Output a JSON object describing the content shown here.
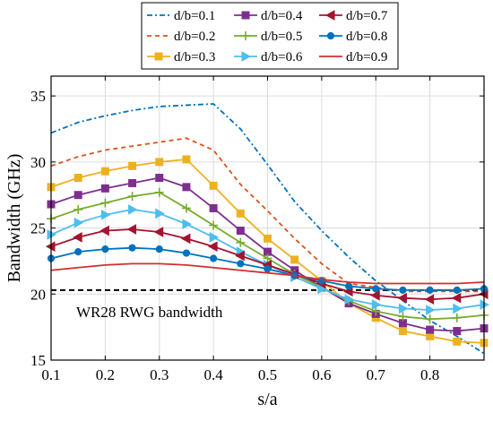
{
  "chart_data": {
    "type": "line",
    "xlabel": "s/a",
    "ylabel": "Bandwidth (GHz)",
    "xlim": [
      0.1,
      0.9
    ],
    "ylim": [
      15,
      36.5
    ],
    "xticks": [
      0.1,
      0.2,
      0.3,
      0.4,
      0.5,
      0.6,
      0.7,
      0.8
    ],
    "yticks": [
      15,
      20,
      25,
      30,
      35
    ],
    "grid": true,
    "legend_position": "top",
    "reference_line": {
      "label": "WR28 RWG bandwidth",
      "y": 20.3,
      "color": "#000000"
    },
    "series": [
      {
        "name": "d/b=0.1",
        "color": "#0072BD",
        "dash": "6,3,2,3",
        "marker": "none",
        "x": [
          0.1,
          0.15,
          0.2,
          0.25,
          0.3,
          0.35,
          0.4,
          0.45,
          0.5,
          0.55,
          0.6,
          0.65,
          0.7,
          0.75,
          0.8,
          0.85,
          0.9
        ],
        "y": [
          32.2,
          33.0,
          33.5,
          33.9,
          34.2,
          34.3,
          34.4,
          32.5,
          29.8,
          27.0,
          24.8,
          22.8,
          21.0,
          19.5,
          18.0,
          16.8,
          15.5
        ]
      },
      {
        "name": "d/b=0.2",
        "color": "#D95319",
        "dash": "5,4",
        "marker": "none",
        "x": [
          0.1,
          0.15,
          0.2,
          0.25,
          0.3,
          0.35,
          0.4,
          0.45,
          0.5,
          0.55,
          0.6,
          0.65,
          0.7,
          0.75,
          0.8,
          0.85,
          0.9
        ],
        "y": [
          29.7,
          30.4,
          30.9,
          31.2,
          31.5,
          31.8,
          30.9,
          28.3,
          26.3,
          24.2,
          22.3,
          20.8,
          20.5,
          20.2,
          20.2,
          20.2,
          20.2
        ]
      },
      {
        "name": "d/b=0.3",
        "color": "#EDB120",
        "dash": "",
        "marker": "square",
        "x": [
          0.1,
          0.15,
          0.2,
          0.25,
          0.3,
          0.35,
          0.4,
          0.45,
          0.5,
          0.55,
          0.6,
          0.65,
          0.7,
          0.75,
          0.8,
          0.85,
          0.9
        ],
        "y": [
          28.1,
          28.8,
          29.3,
          29.7,
          30.0,
          30.2,
          28.2,
          26.1,
          24.2,
          22.6,
          21.0,
          19.3,
          18.2,
          17.2,
          16.8,
          16.4,
          16.3
        ]
      },
      {
        "name": "d/b=0.4",
        "color": "#7E2F8E",
        "dash": "",
        "marker": "square",
        "x": [
          0.1,
          0.15,
          0.2,
          0.25,
          0.3,
          0.35,
          0.4,
          0.45,
          0.5,
          0.55,
          0.6,
          0.65,
          0.7,
          0.75,
          0.8,
          0.85,
          0.9
        ],
        "y": [
          26.8,
          27.5,
          28.0,
          28.4,
          28.8,
          28.1,
          26.5,
          24.8,
          23.2,
          21.8,
          20.5,
          19.3,
          18.5,
          17.8,
          17.3,
          17.2,
          17.4
        ]
      },
      {
        "name": "d/b=0.5",
        "color": "#77AC30",
        "dash": "",
        "marker": "plus",
        "x": [
          0.1,
          0.15,
          0.2,
          0.25,
          0.3,
          0.35,
          0.4,
          0.45,
          0.5,
          0.55,
          0.6,
          0.65,
          0.7,
          0.75,
          0.8,
          0.85,
          0.9
        ],
        "y": [
          25.7,
          26.4,
          26.9,
          27.4,
          27.7,
          26.5,
          25.2,
          23.9,
          22.7,
          21.5,
          20.5,
          19.5,
          18.7,
          18.3,
          18.1,
          18.2,
          18.4
        ]
      },
      {
        "name": "d/b=0.6",
        "color": "#4DBEEE",
        "dash": "",
        "marker": "triangle-right",
        "x": [
          0.1,
          0.15,
          0.2,
          0.25,
          0.3,
          0.35,
          0.4,
          0.45,
          0.5,
          0.55,
          0.6,
          0.65,
          0.7,
          0.75,
          0.8,
          0.85,
          0.9
        ],
        "y": [
          24.5,
          25.4,
          26.0,
          26.4,
          26.1,
          25.3,
          24.3,
          23.2,
          22.2,
          21.3,
          20.4,
          19.6,
          19.2,
          18.9,
          18.8,
          18.9,
          19.2
        ]
      },
      {
        "name": "d/b=0.7",
        "color": "#A2142F",
        "dash": "",
        "marker": "triangle-left",
        "x": [
          0.1,
          0.15,
          0.2,
          0.25,
          0.3,
          0.35,
          0.4,
          0.45,
          0.5,
          0.55,
          0.6,
          0.65,
          0.7,
          0.75,
          0.8,
          0.85,
          0.9
        ],
        "y": [
          23.6,
          24.3,
          24.8,
          24.9,
          24.7,
          24.2,
          23.6,
          22.9,
          22.2,
          21.5,
          20.8,
          20.2,
          19.9,
          19.7,
          19.6,
          19.7,
          20.0
        ]
      },
      {
        "name": "d/b=0.8",
        "color": "#0072BD",
        "dash": "",
        "marker": "circle",
        "x": [
          0.1,
          0.15,
          0.2,
          0.25,
          0.3,
          0.35,
          0.4,
          0.45,
          0.5,
          0.55,
          0.6,
          0.65,
          0.7,
          0.75,
          0.8,
          0.85,
          0.9
        ],
        "y": [
          22.7,
          23.2,
          23.4,
          23.5,
          23.4,
          23.1,
          22.7,
          22.3,
          21.9,
          21.4,
          21.0,
          20.6,
          20.4,
          20.3,
          20.3,
          20.3,
          20.4
        ]
      },
      {
        "name": "d/b=0.9",
        "color": "#D32F2F",
        "dash": "",
        "marker": "none",
        "x": [
          0.1,
          0.15,
          0.2,
          0.25,
          0.3,
          0.35,
          0.4,
          0.45,
          0.5,
          0.55,
          0.6,
          0.65,
          0.7,
          0.75,
          0.8,
          0.85,
          0.9
        ],
        "y": [
          21.8,
          22.0,
          22.2,
          22.3,
          22.3,
          22.2,
          22.0,
          21.8,
          21.6,
          21.4,
          21.1,
          20.9,
          20.8,
          20.8,
          20.8,
          20.8,
          20.9
        ]
      }
    ]
  }
}
